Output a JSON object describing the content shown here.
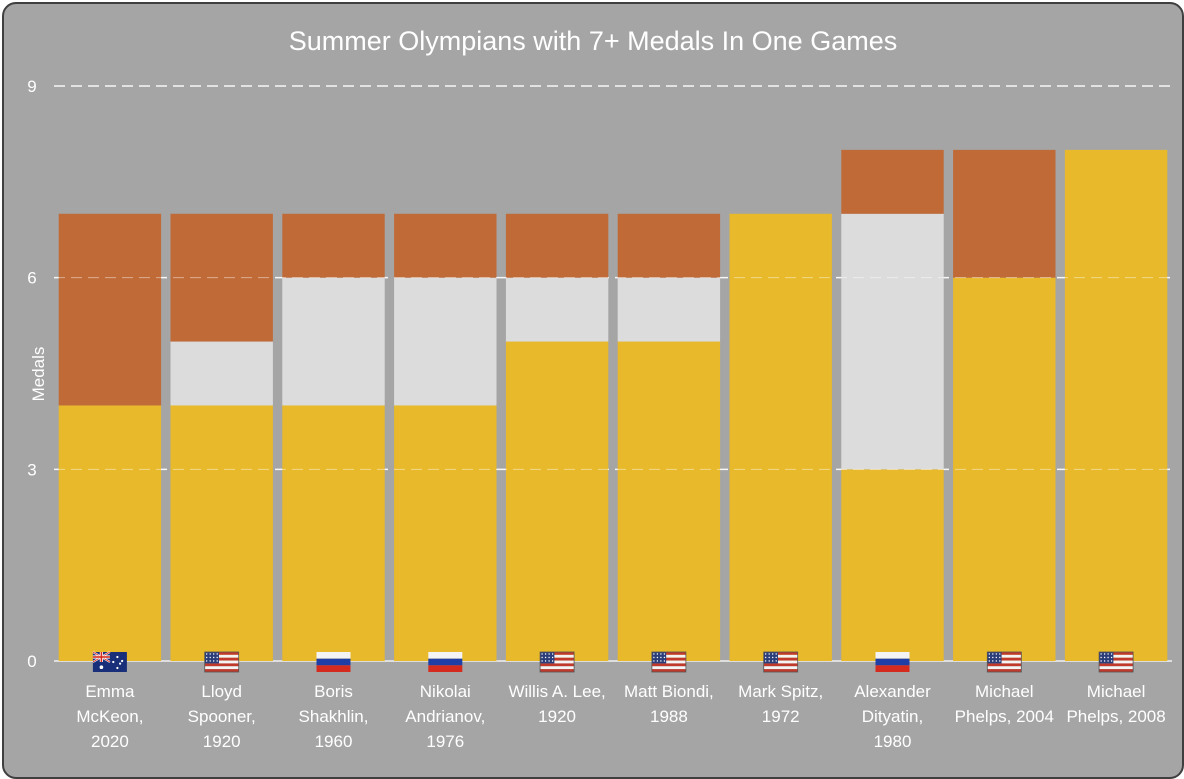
{
  "chart_data": {
    "type": "bar",
    "stacked": true,
    "title": "Summer Olympians with 7+ Medals In One Games",
    "xlabel": "",
    "ylabel": "Medals",
    "ylim": [
      0,
      9
    ],
    "yticks": [
      0,
      3,
      6,
      9
    ],
    "grid": true,
    "legend": "none",
    "categories": [
      "Emma McKeon, 2020",
      "Lloyd Spooner, 1920",
      "Boris Shakhlin, 1960",
      "Nikolai Andrianov, 1976",
      "Willis A. Lee, 1920",
      "Matt Biondi, 1988",
      "Mark Spitz, 1972",
      "Alexander Dityatin, 1980",
      "Michael Phelps, 2004",
      "Michael Phelps, 2008"
    ],
    "category_lines": [
      [
        "Emma",
        "McKeon,",
        "2020"
      ],
      [
        "Lloyd",
        "Spooner,",
        "1920"
      ],
      [
        "Boris",
        "Shakhlin,",
        "1960"
      ],
      [
        "Nikolai",
        "Andrianov,",
        "1976"
      ],
      [
        "Willis A. Lee,",
        "1920"
      ],
      [
        "Matt Biondi,",
        "1988"
      ],
      [
        "Mark Spitz,",
        "1972"
      ],
      [
        "Alexander",
        "Dityatin,",
        "1980"
      ],
      [
        "Michael",
        "Phelps, 2004"
      ],
      [
        "Michael",
        "Phelps, 2008"
      ]
    ],
    "flags": [
      "australia",
      "usa",
      "russia",
      "russia",
      "usa",
      "usa",
      "usa",
      "russia",
      "usa",
      "usa"
    ],
    "series": [
      {
        "name": "Gold",
        "color": "#e8b92a",
        "values": [
          4,
          4,
          4,
          4,
          5,
          5,
          7,
          3,
          6,
          8
        ]
      },
      {
        "name": "Silver",
        "color": "#dcdcdc",
        "values": [
          0,
          1,
          2,
          2,
          1,
          1,
          0,
          4,
          0,
          0
        ]
      },
      {
        "name": "Bronze",
        "color": "#c06a37",
        "values": [
          3,
          2,
          1,
          1,
          1,
          1,
          0,
          1,
          2,
          0
        ]
      }
    ]
  }
}
